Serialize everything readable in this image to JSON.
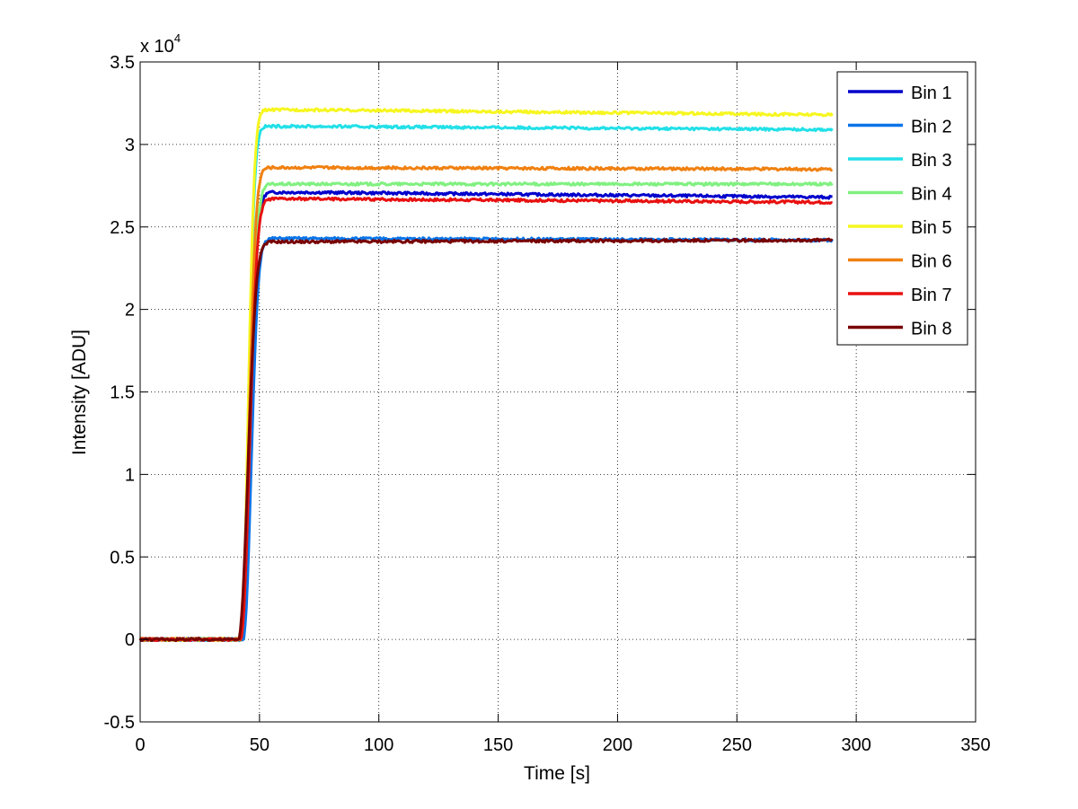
{
  "chart_data": {
    "type": "line",
    "title": "",
    "xlabel": "Time [s]",
    "ylabel": "Intensity [ADU]",
    "xlim": [
      0,
      350
    ],
    "ylim": [
      -5000,
      35000
    ],
    "y_exponent_label": {
      "base": "x 10",
      "exp": "4"
    },
    "xticks": [
      0,
      50,
      100,
      150,
      200,
      250,
      300,
      350
    ],
    "xtick_labels": [
      "0",
      "50",
      "100",
      "150",
      "200",
      "250",
      "300",
      "350"
    ],
    "yticks": [
      -5000,
      0,
      5000,
      10000,
      15000,
      20000,
      25000,
      30000,
      35000
    ],
    "ytick_labels": [
      "-0.5",
      "0",
      "0.5",
      "1",
      "1.5",
      "2",
      "2.5",
      "3",
      "3.5"
    ],
    "grid": true,
    "legend_position": "top-right",
    "series": [
      {
        "name": "Bin 1",
        "color": "#0000cc",
        "onset": 42,
        "tau": 5.0,
        "peak": 27100,
        "end": 26800
      },
      {
        "name": "Bin 2",
        "color": "#0a74e8",
        "onset": 43,
        "tau": 4.6,
        "peak": 24300,
        "end": 24200
      },
      {
        "name": "Bin 3",
        "color": "#22e0e8",
        "onset": 42,
        "tau": 4.2,
        "peak": 31100,
        "end": 30900
      },
      {
        "name": "Bin 4",
        "color": "#80f080",
        "onset": 42,
        "tau": 5.0,
        "peak": 27600,
        "end": 27600
      },
      {
        "name": "Bin 5",
        "color": "#f6f620",
        "onset": 42,
        "tau": 4.2,
        "peak": 32100,
        "end": 31800
      },
      {
        "name": "Bin 6",
        "color": "#f08010",
        "onset": 42,
        "tau": 4.6,
        "peak": 28600,
        "end": 28500
      },
      {
        "name": "Bin 7",
        "color": "#e81010",
        "onset": 42,
        "tau": 5.0,
        "peak": 26700,
        "end": 26500
      },
      {
        "name": "Bin 8",
        "color": "#780000",
        "onset": 41,
        "tau": 5.4,
        "peak": 24100,
        "end": 24200
      }
    ]
  }
}
